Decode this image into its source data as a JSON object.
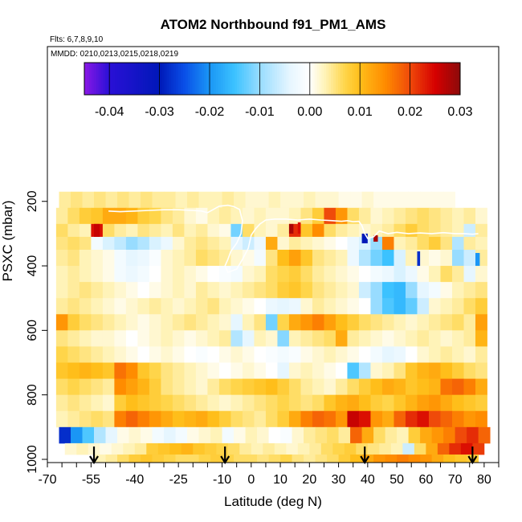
{
  "chart_data": {
    "type": "heatmap",
    "title": "ATOM2 Northbound f91_PM1_AMS",
    "flights_label": "Flts: 6,7,8,9,10",
    "dates_label": "MMDD: 0210,0213,0215,0218,0219",
    "xlabel": "Latitude (deg N)",
    "ylabel": "PSXC (mbar)",
    "xlim": [
      -70,
      85
    ],
    "ylim": [
      1010,
      -280
    ],
    "x_ticks": [
      -70,
      -55,
      -40,
      -25,
      -10,
      0,
      10,
      20,
      30,
      40,
      50,
      60,
      70,
      80
    ],
    "y_ticks": [
      200,
      400,
      600,
      800,
      1000
    ],
    "colorbar": {
      "min": -0.045,
      "max": 0.03,
      "ticks": [
        "-0.04",
        "-0.03",
        "-0.02",
        "-0.01",
        "0.00",
        "0.01",
        "0.02",
        "0.03"
      ],
      "tick_values": [
        -0.04,
        -0.03,
        -0.02,
        -0.01,
        0.0,
        0.01,
        0.02,
        0.03
      ],
      "stops": [
        {
          "v": -0.045,
          "color": "#8a18e6"
        },
        {
          "v": -0.04,
          "color": "#2a10d6"
        },
        {
          "v": -0.03,
          "color": "#0018b8"
        },
        {
          "v": -0.025,
          "color": "#0a50e8"
        },
        {
          "v": -0.02,
          "color": "#1a96f5"
        },
        {
          "v": -0.015,
          "color": "#3cc2ff"
        },
        {
          "v": -0.01,
          "color": "#98dcff"
        },
        {
          "v": -0.004,
          "color": "#e6f6ff"
        },
        {
          "v": 0.0,
          "color": "#ffffff"
        },
        {
          "v": 0.003,
          "color": "#fff3b8"
        },
        {
          "v": 0.007,
          "color": "#ffd54a"
        },
        {
          "v": 0.01,
          "color": "#ffbe1a"
        },
        {
          "v": 0.015,
          "color": "#ff8c00"
        },
        {
          "v": 0.02,
          "color": "#ef4a0a"
        },
        {
          "v": 0.025,
          "color": "#d60000"
        },
        {
          "v": 0.03,
          "color": "#8c0a0a"
        }
      ]
    },
    "arrows_lat": [
      -54,
      -9,
      39,
      76
    ],
    "cell_width_deg": 4,
    "rows": [
      {
        "p_top": 170,
        "p_bot": 220,
        "x_start": -66,
        "values": [
          0.004,
          0.005,
          0.004,
          0.005,
          0.004,
          0.005,
          0.004,
          0.005,
          0.004,
          0.004,
          0.003,
          0.004,
          0.003,
          0.003,
          0.004,
          0.003,
          0.002,
          0.002,
          0.003,
          0.002,
          0.002,
          0.003,
          0.002,
          0.002,
          0.001,
          0.001,
          0.002,
          0.001,
          0.001,
          0.001,
          0.001,
          0.001,
          0.001,
          0.001
        ]
      },
      {
        "p_top": 220,
        "p_bot": 270,
        "x_start": -67,
        "values": [
          0.004,
          0.006,
          0.008,
          0.009,
          0.012,
          0.012,
          0.011,
          0.008,
          0.007,
          0.005,
          0.004,
          0.002,
          0.001,
          0.003,
          0.004,
          0.003,
          0.002,
          0.003,
          0.002,
          0.002,
          0.003,
          0.005,
          0.008,
          0.02,
          0.014,
          0.006,
          0.004,
          0.002,
          0.003,
          0.004,
          0.005,
          0.006,
          0.005,
          0.004,
          0.003,
          0.004,
          0.002
        ]
      },
      {
        "p_top": 270,
        "p_bot": 310,
        "x_start": -67,
        "values": [
          0.006,
          0.004,
          0.003,
          0.024,
          0.006,
          0.004,
          0.003,
          0.005,
          0.004,
          0.003,
          0.005,
          0.003,
          0.004,
          0.002,
          0.001,
          -0.012,
          0.006,
          0.003,
          0.002,
          0.004,
          0.022,
          0.009,
          0.015,
          0.006,
          0.004,
          0.003,
          0.002,
          0.003,
          0.004,
          0.006,
          0.008,
          0.006,
          0.005,
          0.004,
          0.003,
          -0.006,
          0.004
        ]
      },
      {
        "p_top": 310,
        "p_bot": 350,
        "x_start": -67,
        "values": [
          0.005,
          0.006,
          0.005,
          -0.002,
          -0.005,
          -0.007,
          -0.01,
          -0.008,
          -0.005,
          -0.003,
          0.002,
          0.004,
          0.005,
          0.004,
          0.003,
          -0.004,
          -0.006,
          -0.003,
          0.012,
          0.002,
          0.004,
          0.003,
          0.002,
          0.001,
          0.0,
          -0.003,
          -0.005,
          -0.01,
          0.016,
          0.003,
          0.004,
          0.006,
          0.008,
          0.005,
          -0.008,
          0.004,
          0.003
        ]
      },
      {
        "p_top": 350,
        "p_bot": 400,
        "x_start": -67,
        "values": [
          0.004,
          0.005,
          0.003,
          0.002,
          0.001,
          -0.002,
          -0.004,
          -0.003,
          -0.001,
          0.002,
          0.003,
          0.004,
          0.006,
          0.005,
          0.004,
          0.002,
          0.001,
          -0.002,
          0.005,
          0.01,
          0.013,
          0.009,
          0.005,
          0.004,
          0.003,
          -0.003,
          -0.008,
          -0.012,
          -0.015,
          -0.005,
          0.003,
          0.002,
          0.001,
          0.002,
          -0.01,
          -0.006,
          0.004
        ]
      },
      {
        "p_top": 400,
        "p_bot": 450,
        "x_start": -67,
        "values": [
          0.003,
          0.004,
          0.003,
          0.002,
          0.001,
          -0.002,
          -0.003,
          -0.002,
          0.0,
          0.002,
          0.003,
          0.002,
          0.001,
          0.0,
          -0.001,
          -0.002,
          0.002,
          0.003,
          0.006,
          0.007,
          0.008,
          0.006,
          0.004,
          0.003,
          0.002,
          0.001,
          0.0,
          -0.002,
          -0.003,
          -0.005,
          -0.003,
          0.001,
          0.003,
          0.006,
          0.004,
          -0.004,
          0.002
        ]
      },
      {
        "p_top": 450,
        "p_bot": 500,
        "x_start": -67,
        "values": [
          0.003,
          0.004,
          0.005,
          0.004,
          0.003,
          0.002,
          0.001,
          0.0,
          0.001,
          0.002,
          0.003,
          0.002,
          0.004,
          0.003,
          0.002,
          0.003,
          0.004,
          0.005,
          0.006,
          0.008,
          0.009,
          0.007,
          0.005,
          0.004,
          0.003,
          0.002,
          -0.006,
          -0.01,
          -0.015,
          -0.016,
          -0.01,
          -0.004,
          -0.002,
          0.001,
          0.003,
          0.004,
          0.005
        ]
      },
      {
        "p_top": 500,
        "p_bot": 550,
        "x_start": -67,
        "values": [
          0.004,
          0.005,
          0.004,
          0.003,
          0.002,
          0.001,
          0.002,
          0.003,
          0.004,
          0.003,
          0.002,
          0.003,
          0.004,
          0.005,
          0.003,
          0.002,
          0.001,
          0.0,
          -0.003,
          -0.004,
          -0.003,
          0.002,
          0.004,
          0.003,
          0.002,
          0.001,
          0.0,
          -0.01,
          -0.014,
          -0.016,
          -0.013,
          -0.006,
          0.002,
          0.003,
          0.004,
          0.006,
          0.008
        ]
      },
      {
        "p_top": 550,
        "p_bot": 600,
        "x_start": -67,
        "values": [
          0.014,
          0.008,
          0.006,
          0.005,
          0.004,
          0.003,
          0.002,
          0.001,
          0.002,
          0.003,
          0.004,
          0.005,
          0.004,
          0.003,
          0.002,
          -0.004,
          0.003,
          0.005,
          -0.012,
          0.007,
          0.012,
          0.014,
          0.016,
          0.013,
          0.01,
          0.008,
          0.006,
          0.005,
          0.004,
          0.003,
          0.002,
          0.003,
          0.004,
          0.005,
          0.006,
          0.004,
          0.013
        ]
      },
      {
        "p_top": 600,
        "p_bot": 650,
        "x_start": -67,
        "values": [
          0.005,
          0.004,
          0.003,
          0.002,
          0.002,
          0.001,
          0.0,
          0.001,
          0.002,
          0.003,
          0.002,
          0.001,
          0.002,
          0.003,
          0.004,
          -0.008,
          -0.004,
          0.003,
          0.002,
          -0.011,
          0.003,
          0.004,
          0.005,
          0.006,
          0.012,
          0.004,
          0.003,
          0.002,
          0.001,
          0.002,
          0.003,
          0.004,
          0.003,
          0.002,
          0.003,
          0.004,
          0.011
        ]
      },
      {
        "p_top": 650,
        "p_bot": 700,
        "x_start": -67,
        "values": [
          0.007,
          0.006,
          0.005,
          0.004,
          0.003,
          0.002,
          0.001,
          0.0,
          0.001,
          0.002,
          0.001,
          0.0,
          -0.001,
          0.0,
          0.001,
          0.002,
          0.001,
          0.0,
          -0.001,
          -0.002,
          -0.001,
          0.001,
          0.002,
          0.003,
          0.002,
          0.001,
          0.0,
          -0.002,
          -0.004,
          -0.003,
          0.0,
          0.002,
          0.003,
          0.004,
          0.003,
          0.002,
          0.004
        ]
      },
      {
        "p_top": 700,
        "p_bot": 750,
        "x_start": -67,
        "values": [
          0.009,
          0.01,
          0.011,
          0.01,
          0.009,
          0.017,
          0.015,
          0.009,
          0.007,
          0.005,
          0.004,
          0.003,
          0.002,
          0.001,
          0.0,
          0.001,
          0.002,
          0.001,
          0.0,
          -0.004,
          0.002,
          0.003,
          0.002,
          0.001,
          0.0,
          -0.014,
          -0.008,
          0.002,
          0.003,
          0.005,
          0.009,
          0.011,
          0.012,
          0.01,
          0.008,
          0.006,
          0.005
        ]
      },
      {
        "p_top": 750,
        "p_bot": 800,
        "x_start": -67,
        "values": [
          0.006,
          0.007,
          0.006,
          0.005,
          0.004,
          0.015,
          0.013,
          0.011,
          0.008,
          0.005,
          0.004,
          0.003,
          0.002,
          0.004,
          0.006,
          0.007,
          0.008,
          0.009,
          0.01,
          0.008,
          0.006,
          0.004,
          0.003,
          0.002,
          0.004,
          0.006,
          0.008,
          0.01,
          0.012,
          0.011,
          0.009,
          0.01,
          0.011,
          0.017,
          0.018,
          0.016,
          0.012
        ]
      },
      {
        "p_top": 800,
        "p_bot": 850,
        "x_start": -67,
        "values": [
          0.004,
          0.005,
          0.004,
          0.003,
          0.002,
          0.008,
          0.01,
          0.009,
          0.008,
          0.007,
          0.006,
          0.005,
          0.004,
          0.003,
          0.002,
          0.003,
          0.004,
          0.005,
          0.006,
          0.007,
          0.006,
          0.005,
          0.006,
          0.009,
          0.011,
          0.012,
          0.01,
          0.008,
          0.007,
          0.009,
          0.011,
          0.013,
          0.014,
          0.012,
          0.01,
          0.009,
          0.008
        ]
      },
      {
        "p_top": 850,
        "p_bot": 900,
        "x_start": -67,
        "values": [
          0.003,
          0.004,
          0.005,
          0.006,
          0.005,
          0.016,
          0.018,
          0.016,
          0.014,
          0.012,
          0.01,
          0.011,
          0.012,
          0.01,
          0.008,
          0.006,
          0.005,
          0.004,
          0.006,
          0.008,
          0.012,
          0.016,
          0.018,
          0.017,
          0.014,
          0.026,
          0.024,
          0.014,
          0.012,
          0.018,
          0.022,
          0.024,
          0.02,
          0.018,
          0.016,
          0.014,
          0.015
        ]
      },
      {
        "p_top": 900,
        "p_bot": 950,
        "x_start": -66,
        "values": [
          -0.028,
          -0.02,
          -0.014,
          -0.008,
          -0.004,
          0.001,
          0.002,
          0.001,
          -0.002,
          -0.004,
          -0.002,
          0.001,
          0.002,
          0.003,
          -0.002,
          0.001,
          0.003,
          0.002,
          0.0,
          -0.001,
          0.002,
          0.004,
          0.005,
          0.006,
          0.004,
          0.018,
          0.012,
          0.006,
          0.004,
          0.003,
          0.008,
          0.012,
          0.014,
          0.016,
          0.02,
          0.022,
          0.018
        ]
      },
      {
        "p_top": 950,
        "p_bot": 985,
        "x_start": -64,
        "values": [
          0.002,
          0.003,
          0.002,
          0.001,
          0.002,
          0.003,
          0.004,
          0.008,
          0.009,
          0.01,
          0.011,
          0.009,
          0.008,
          0.007,
          0.006,
          0.004,
          0.003,
          0.004,
          0.003,
          0.002,
          0.003,
          0.004,
          0.006,
          0.007,
          0.008,
          0.006,
          0.005,
          0.004,
          0.003,
          -0.006,
          0.006,
          0.012,
          0.018,
          0.022,
          0.024,
          0.021
        ]
      },
      {
        "p_top": 985,
        "p_bot": 1010,
        "x_start": -54,
        "values": [
          0.003,
          0.004,
          0.006,
          0.008,
          0.009,
          0.008,
          0.007,
          0.006,
          0.006,
          0.007,
          0.008,
          0.007,
          0.006,
          0.006,
          0.005,
          0.006,
          0.007,
          0.005,
          0.004,
          0.005,
          0.006,
          0.008,
          0.01,
          0.012,
          0.014,
          0.015,
          0.016,
          0.015,
          0.014,
          0.012,
          0.01,
          0.009,
          0.008
        ]
      }
    ],
    "anomalies": [
      {
        "lat": -54,
        "p_top": 270,
        "p_bot": 310,
        "width": 2,
        "value": 0.026
      },
      {
        "lat": 38,
        "p_top": 300,
        "p_bot": 330,
        "width": 2,
        "value": -0.03
      },
      {
        "lat": 42,
        "p_top": 305,
        "p_bot": 325,
        "width": 1.5,
        "value": 0.028
      },
      {
        "lat": 57,
        "p_top": 355,
        "p_bot": 400,
        "width": 1,
        "value": -0.028
      },
      {
        "lat": 77,
        "p_top": 360,
        "p_bot": 400,
        "width": 1.5,
        "value": -0.02
      },
      {
        "lat": 13,
        "p_top": 270,
        "p_bot": 300,
        "width": 1.5,
        "value": 0.028
      },
      {
        "lat": 16,
        "p_top": 265,
        "p_bot": 300,
        "width": 1,
        "value": 0.024
      }
    ],
    "trace": [
      [
        -49,
        230
      ],
      [
        -45,
        232
      ],
      [
        -40,
        230
      ],
      [
        -35,
        228
      ],
      [
        -30,
        226
      ],
      [
        -25,
        226
      ],
      [
        -20,
        228
      ],
      [
        -17,
        230
      ],
      [
        -15,
        235
      ],
      [
        -13,
        225
      ],
      [
        -11,
        215
      ],
      [
        -8,
        212
      ],
      [
        -6,
        216
      ],
      [
        -4,
        225
      ],
      [
        -3,
        260
      ],
      [
        -3.5,
        300
      ],
      [
        -5,
        330
      ],
      [
        -7,
        355
      ],
      [
        -8,
        380
      ],
      [
        -9,
        400
      ],
      [
        -8,
        420
      ],
      [
        -5,
        410
      ],
      [
        -3,
        380
      ],
      [
        -1,
        345
      ],
      [
        0,
        305
      ],
      [
        1.5,
        285
      ],
      [
        3,
        270
      ],
      [
        5,
        258
      ],
      [
        8,
        255
      ],
      [
        12,
        255
      ],
      [
        16,
        258
      ],
      [
        20,
        255
      ],
      [
        24,
        258
      ],
      [
        28,
        260
      ],
      [
        31,
        262
      ],
      [
        33,
        260
      ],
      [
        35,
        263
      ],
      [
        37,
        262
      ],
      [
        38,
        275
      ],
      [
        39,
        300
      ],
      [
        40,
        315
      ],
      [
        42,
        310
      ],
      [
        44,
        292
      ],
      [
        47,
        300
      ],
      [
        50,
        296
      ],
      [
        54,
        300
      ],
      [
        58,
        298
      ],
      [
        62,
        300
      ],
      [
        66,
        297
      ],
      [
        70,
        300
      ],
      [
        73,
        300
      ],
      [
        76,
        302
      ],
      [
        78,
        300
      ]
    ]
  }
}
